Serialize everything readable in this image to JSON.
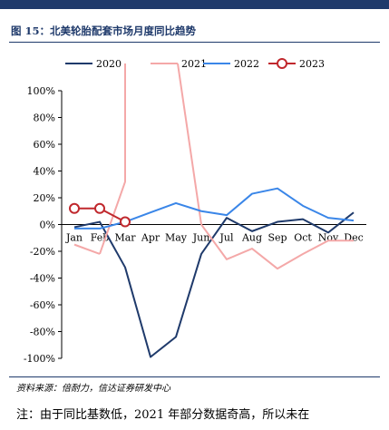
{
  "figure": {
    "title": "图 15：北美轮胎配套市场月度同比趋势",
    "source": "资料来源：倍耐力，信达证券研发中心",
    "note": "注：由于同比基数低，2021 年部分数据奇高，所以未在"
  },
  "chart_data": {
    "type": "line",
    "title": "",
    "xlabel": "",
    "ylabel": "",
    "categories": [
      "Jan",
      "Feb",
      "Mar",
      "Apr",
      "May",
      "Jun",
      "Jul",
      "Aug",
      "Sep",
      "Oct",
      "Nov",
      "Dec"
    ],
    "ylim": [
      -100,
      100
    ],
    "yticks": [
      100,
      80,
      60,
      40,
      20,
      0,
      -20,
      -40,
      -60,
      -80,
      -100
    ],
    "ytick_labels": [
      "100%",
      "80%",
      "60%",
      "40%",
      "20%",
      "0%",
      "-20%",
      "-40%",
      "-60%",
      "-80%",
      "-100%"
    ],
    "grid": false,
    "legend_position": "top",
    "series": [
      {
        "name": "2020",
        "color": "#1f3a6b",
        "values": [
          -2,
          2,
          -32,
          -99,
          -84,
          -22,
          5,
          -5,
          2,
          4,
          -6,
          9
        ]
      },
      {
        "name": "2021",
        "color": "#f4a8a8",
        "values": [
          -15,
          -22,
          null,
          null,
          null,
          0,
          -26,
          -18,
          -33,
          -22,
          -12,
          -12
        ],
        "note": "values for Mar-May exceed the 100% axis limit and are drawn clipped"
      },
      {
        "name": "2022",
        "color": "#3a86e8",
        "values": [
          -3,
          -3,
          2,
          9,
          16,
          10,
          7,
          23,
          27,
          14,
          5,
          3
        ]
      },
      {
        "name": "2023",
        "color": "#c0282d",
        "marker": "circle",
        "values": [
          12,
          12,
          2,
          null,
          null,
          null,
          null,
          null,
          null,
          null,
          null,
          null
        ]
      }
    ]
  }
}
